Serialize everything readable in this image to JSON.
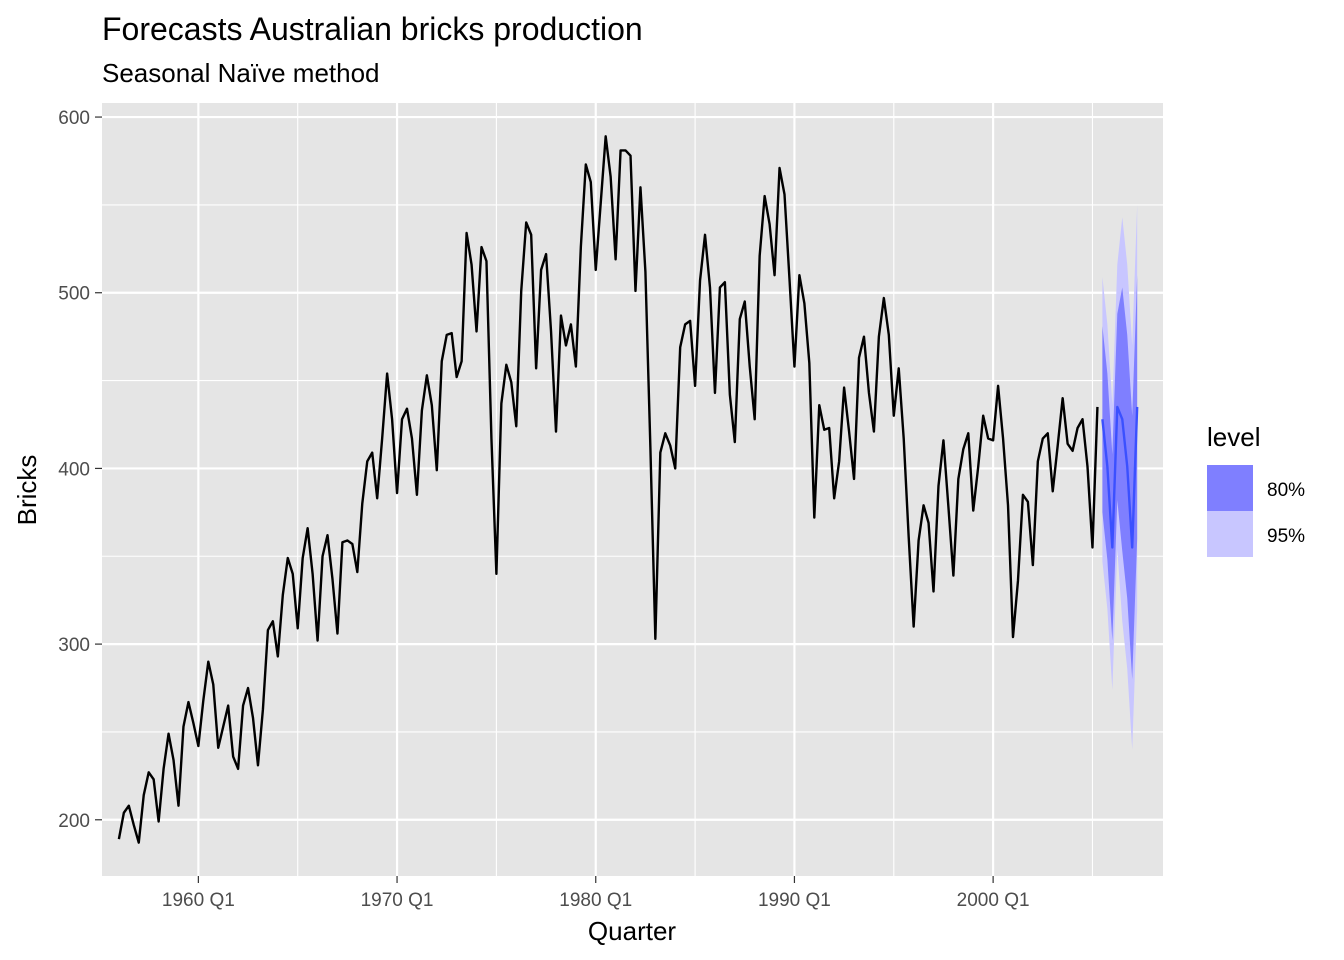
{
  "chart_data": {
    "type": "line",
    "title": "Forecasts Australian bricks production",
    "subtitle": "Seasonal Naïve method",
    "xlabel": "Quarter",
    "ylabel": "Bricks",
    "ylim": [
      168,
      608
    ],
    "xlim": [
      1955.15,
      2008.55
    ],
    "x_ticks": [
      {
        "value": 1960,
        "label": "1960 Q1"
      },
      {
        "value": 1970,
        "label": "1970 Q1"
      },
      {
        "value": 1980,
        "label": "1980 Q1"
      },
      {
        "value": 1990,
        "label": "1990 Q1"
      },
      {
        "value": 2000,
        "label": "2000 Q1"
      }
    ],
    "y_ticks": [
      {
        "value": 200,
        "label": "200"
      },
      {
        "value": 300,
        "label": "300"
      },
      {
        "value": 400,
        "label": "400"
      },
      {
        "value": 500,
        "label": "500"
      },
      {
        "value": 600,
        "label": "600"
      }
    ],
    "grid": true,
    "legend_position": "right",
    "colors": {
      "panel": "#e5e5e5",
      "grid": "#ffffff",
      "history_line": "#000000",
      "forecast_line": "#3b50ff",
      "band_80": "#7f7fff",
      "band_95": "#c8c6ff"
    },
    "legend": {
      "title": "level",
      "items": [
        {
          "label": "80%",
          "color": "#7f7fff"
        },
        {
          "label": "95%",
          "color": "#c8c6ff"
        }
      ]
    },
    "history": {
      "start_year": 1956,
      "frequency": "quarterly",
      "values": [
        189,
        204,
        208,
        197,
        187,
        214,
        227,
        223,
        199,
        229,
        249,
        234,
        208,
        253,
        267,
        255,
        242,
        268,
        290,
        277,
        241,
        253,
        265,
        236,
        229,
        265,
        275,
        258,
        231,
        263,
        308,
        313,
        293,
        328,
        349,
        340,
        309,
        349,
        366,
        340,
        302,
        350,
        362,
        337,
        306,
        358,
        359,
        357,
        341,
        380,
        404,
        409,
        383,
        417,
        454,
        428,
        386,
        428,
        434,
        417,
        385,
        433,
        453,
        436,
        399,
        461,
        476,
        477,
        452,
        461,
        534,
        516,
        478,
        526,
        518,
        417,
        340,
        437,
        459,
        449,
        424,
        501,
        540,
        533,
        457,
        513,
        522,
        478,
        421,
        487,
        470,
        482,
        458,
        526,
        573,
        563,
        513,
        551,
        589,
        566,
        519,
        581,
        581,
        578,
        501,
        560,
        512,
        412,
        303,
        409,
        420,
        413,
        400,
        469,
        482,
        484,
        447,
        507,
        533,
        503,
        443,
        503,
        506,
        442,
        415,
        485,
        495,
        458,
        428,
        521,
        555,
        539,
        510,
        571,
        556,
        508,
        458,
        510,
        494,
        460,
        372,
        436,
        422,
        423,
        383,
        404,
        446,
        421,
        394,
        463,
        475,
        443,
        421,
        475,
        497,
        476,
        430,
        457,
        417,
        361,
        310,
        359,
        379,
        369,
        330,
        390,
        416,
        378,
        339,
        394,
        411,
        420,
        376,
        401,
        430,
        417,
        416,
        447,
        417,
        379,
        304,
        336,
        385,
        381,
        345,
        404,
        417,
        420,
        387,
        413,
        440,
        414,
        410,
        423,
        428,
        401,
        355,
        435
      ]
    },
    "forecast": {
      "start_year": 2005.5,
      "frequency": "quarterly",
      "mean": [
        428,
        401,
        355,
        435,
        428,
        401,
        355,
        435
      ],
      "lo80": [
        375,
        348,
        302,
        382,
        353,
        326,
        280,
        360
      ],
      "hi80": [
        481,
        454,
        408,
        488,
        503,
        476,
        430,
        510
      ],
      "lo95": [
        347,
        320,
        274,
        354,
        313,
        286,
        240,
        320
      ],
      "hi95": [
        509,
        482,
        436,
        516,
        543,
        516,
        470,
        550
      ]
    }
  }
}
